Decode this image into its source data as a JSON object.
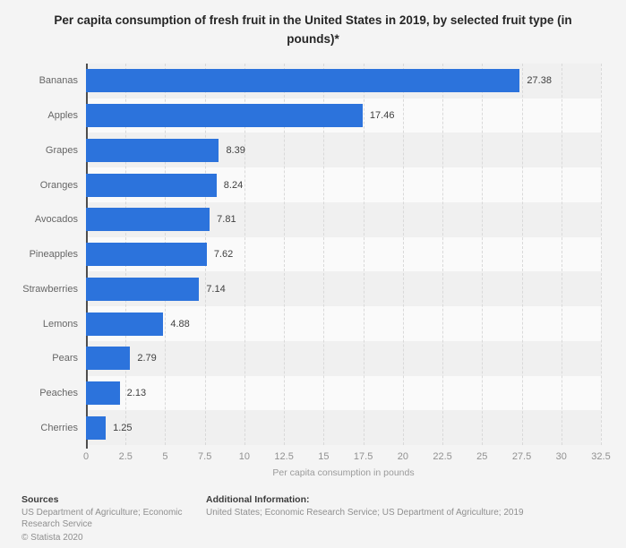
{
  "title": "Per capita consumption of fresh fruit in the United States in 2019, by selected fruit type (in pounds)*",
  "chart_data": {
    "type": "bar",
    "orientation": "horizontal",
    "title": "Per capita consumption of fresh fruit in the United States in 2019, by selected fruit type (in pounds)*",
    "categories": [
      "Bananas",
      "Apples",
      "Grapes",
      "Oranges",
      "Avocados",
      "Pineapples",
      "Strawberries",
      "Lemons",
      "Pears",
      "Peaches",
      "Cherries"
    ],
    "values": [
      27.38,
      17.46,
      8.39,
      8.24,
      7.81,
      7.62,
      7.14,
      4.88,
      2.79,
      2.13,
      1.25
    ],
    "xlabel": "Per capita consumption in pounds",
    "ylabel": "",
    "xlim": [
      0,
      32.5
    ],
    "xticks": [
      "0",
      "2.5",
      "5",
      "7.5",
      "10",
      "12.5",
      "15",
      "17.5",
      "20",
      "22.5",
      "25",
      "27.5",
      "30",
      "32.5"
    ],
    "grid": true,
    "legend": false,
    "bar_color": "#2c73dc"
  },
  "footer": {
    "sources_heading": "Sources",
    "sources_text": "US Department of Agriculture; Economic Research Service",
    "copyright": "© Statista 2020",
    "additional_heading": "Additional Information:",
    "additional_text": "United States; Economic Research Service; US Department of Agriculture; 2019"
  }
}
